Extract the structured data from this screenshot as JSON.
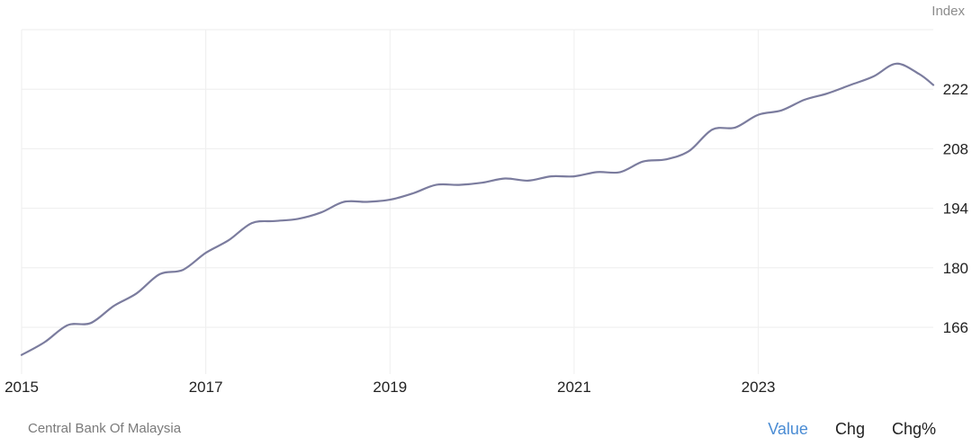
{
  "chart_data": {
    "type": "line",
    "unit_label": "Index",
    "ylim": [
      155,
      236
    ],
    "xlim": [
      2015.0,
      2024.9
    ],
    "y_ticks": [
      166,
      180,
      194,
      208,
      222
    ],
    "x_ticks": [
      {
        "value": 2015,
        "label": "2015"
      },
      {
        "value": 2017,
        "label": "2017"
      },
      {
        "value": 2019,
        "label": "2019"
      },
      {
        "value": 2021,
        "label": "2021"
      },
      {
        "value": 2023,
        "label": "2023"
      }
    ],
    "grid": true,
    "series": [
      {
        "color": "#7b7c9e",
        "points": [
          [
            2015.0,
            159.5
          ],
          [
            2015.25,
            162.5
          ],
          [
            2015.5,
            166.5
          ],
          [
            2015.75,
            167.0
          ],
          [
            2016.0,
            171.0
          ],
          [
            2016.25,
            174.0
          ],
          [
            2016.5,
            178.5
          ],
          [
            2016.75,
            179.5
          ],
          [
            2017.0,
            183.5
          ],
          [
            2017.25,
            186.5
          ],
          [
            2017.5,
            190.5
          ],
          [
            2017.75,
            191.0
          ],
          [
            2018.0,
            191.5
          ],
          [
            2018.25,
            193.0
          ],
          [
            2018.5,
            195.5
          ],
          [
            2018.75,
            195.5
          ],
          [
            2019.0,
            196.0
          ],
          [
            2019.25,
            197.5
          ],
          [
            2019.5,
            199.5
          ],
          [
            2019.75,
            199.5
          ],
          [
            2020.0,
            200.0
          ],
          [
            2020.25,
            201.0
          ],
          [
            2020.5,
            200.5
          ],
          [
            2020.75,
            201.5
          ],
          [
            2021.0,
            201.5
          ],
          [
            2021.25,
            202.5
          ],
          [
            2021.5,
            202.5
          ],
          [
            2021.75,
            205.0
          ],
          [
            2022.0,
            205.5
          ],
          [
            2022.25,
            207.5
          ],
          [
            2022.5,
            212.5
          ],
          [
            2022.75,
            213.0
          ],
          [
            2023.0,
            216.0
          ],
          [
            2023.25,
            217.0
          ],
          [
            2023.5,
            219.5
          ],
          [
            2023.75,
            221.0
          ],
          [
            2024.0,
            223.0
          ],
          [
            2024.25,
            225.0
          ],
          [
            2024.5,
            228.0
          ],
          [
            2024.75,
            225.5
          ],
          [
            2024.9,
            223.0
          ]
        ]
      }
    ]
  },
  "footer": {
    "source": "Central Bank Of Malaysia",
    "views": [
      "Value",
      "Chg",
      "Chg%"
    ],
    "active_view": "Value"
  },
  "colors": {
    "line": "#7b7c9e",
    "grid": "#eeeeee",
    "accent": "#4a8cd4"
  }
}
